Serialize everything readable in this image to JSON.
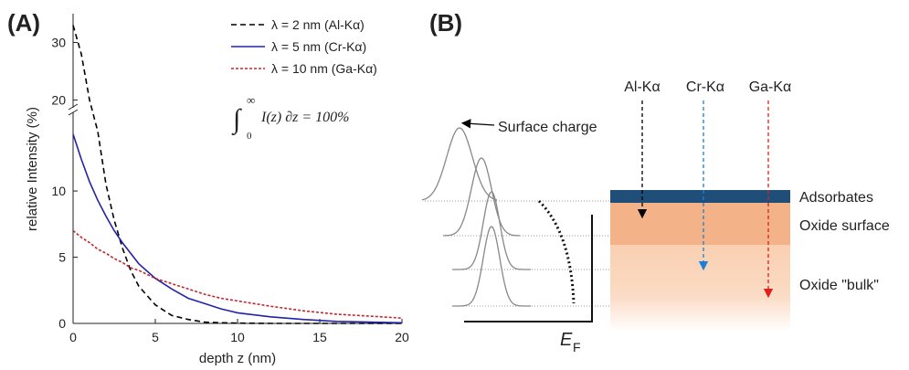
{
  "chart_data": {
    "type": "line",
    "panel_label": "(A)",
    "x_label": "depth z (nm)",
    "y_label": "relative Intensity (%)",
    "x": [
      0,
      0.5,
      1,
      1.5,
      2,
      2.5,
      3,
      3.5,
      4,
      5,
      6,
      7,
      8,
      9,
      10,
      12,
      14,
      16,
      18,
      20
    ],
    "series": [
      {
        "name": "λ = 2 nm (Al-Kα)",
        "color": "#000000",
        "dash": "6,4",
        "values": [
          33,
          28,
          20,
          14.5,
          10.5,
          7.8,
          5.7,
          4.0,
          2.8,
          1.4,
          0.6,
          0.3,
          0.1,
          0.05,
          0.02,
          0,
          0,
          0,
          0,
          0
        ]
      },
      {
        "name": "λ = 5 nm (Cr-Kα)",
        "color": "#2323a8",
        "dash": "none",
        "values": [
          14.3,
          12.4,
          10.7,
          9.3,
          8.1,
          7.0,
          6.1,
          5.3,
          4.5,
          3.4,
          2.6,
          1.9,
          1.5,
          1.1,
          0.8,
          0.5,
          0.3,
          0.15,
          0.1,
          0.05
        ]
      },
      {
        "name": "λ = 10 nm (Ga-Kα)",
        "color": "#c0282d",
        "dash": "3,2",
        "values": [
          7.0,
          6.5,
          6.1,
          5.6,
          5.3,
          4.9,
          4.6,
          4.2,
          4.0,
          3.4,
          3.0,
          2.6,
          2.2,
          1.9,
          1.7,
          1.3,
          0.95,
          0.7,
          0.55,
          0.4
        ]
      }
    ],
    "xlim": [
      0,
      20
    ],
    "xticks": [
      0,
      5,
      10,
      15,
      20
    ],
    "ylim_lower": [
      0,
      15.8
    ],
    "ylim_upper": [
      18,
      35
    ],
    "yticks": [
      0,
      5,
      10,
      20,
      30
    ],
    "annotation": {
      "integral": "∫",
      "lower": "0",
      "upper": "∞",
      "expression": "I(z) ∂z = 100%"
    }
  },
  "diagram": {
    "panel_label": "(B)",
    "surface_charge": "Surface charge",
    "sources": [
      "Al-Kα",
      "Cr-Kα",
      "Ga-Kα"
    ],
    "layers": [
      "Adsorbates",
      "Oxide surface",
      "Oxide \"bulk\""
    ],
    "fermi_symbol": "E",
    "fermi_subscript": "F"
  }
}
